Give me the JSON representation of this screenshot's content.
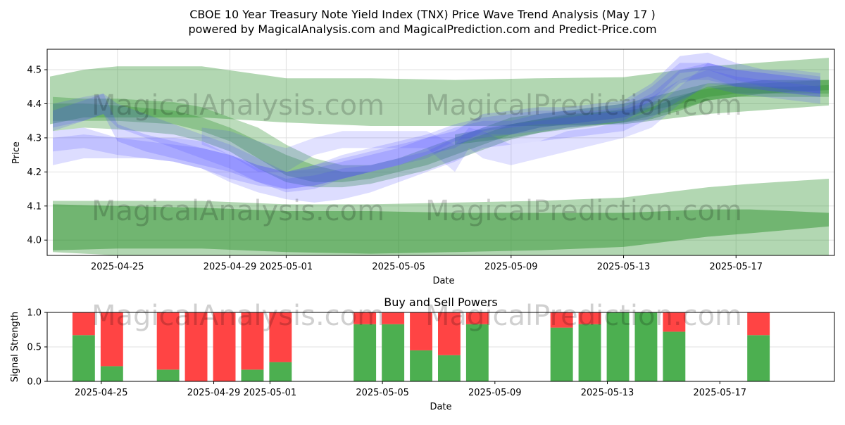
{
  "title_line1": "CBOE 10 Year Treasury Note Yield Index (TNX) Price Wave Trend Analysis (May 17 )",
  "title_line2": "powered by MagicalAnalysis.com and MagicalPrediction.com and Predict-Price.com",
  "watermarks": [
    "MagicalAnalysis.com",
    "MagicalPrediction.com"
  ],
  "colors": {
    "green": "#228b22",
    "blue": "#4444ff",
    "buy": "#4caf50",
    "sell": "#ff4444"
  },
  "chart_data": [
    {
      "type": "area",
      "title": "",
      "xlabel": "Date",
      "ylabel": "Price",
      "ylim": [
        3.955,
        4.56
      ],
      "xlim_days": [
        -2.5,
        25.5
      ],
      "x_origin": "2025-04-25",
      "grid": true,
      "yticks": [
        4.0,
        4.1,
        4.2,
        4.3,
        4.4,
        4.5
      ],
      "ytick_labels": [
        "4.0",
        "4.1",
        "4.2",
        "4.3",
        "4.4",
        "4.5"
      ],
      "xticks_days": [
        0,
        4,
        6,
        10,
        14,
        18,
        22
      ],
      "xtick_labels": [
        "2025-04-25",
        "2025-04-29",
        "2025-05-01",
        "2025-05-05",
        "2025-05-09",
        "2025-05-13",
        "2025-05-17"
      ],
      "green_bands": [
        {
          "name": "upper-wide",
          "x": [
            -2.4,
            -1.2,
            0,
            3,
            6,
            9,
            12,
            15,
            18,
            21,
            25.3
          ],
          "top": [
            4.48,
            4.5,
            4.51,
            4.51,
            4.475,
            4.475,
            4.47,
            4.475,
            4.478,
            4.51,
            4.535
          ],
          "bottom": [
            4.34,
            4.36,
            4.36,
            4.36,
            4.345,
            4.335,
            4.335,
            4.335,
            4.34,
            4.37,
            4.395
          ],
          "alpha": 0.35
        },
        {
          "name": "lower-wide",
          "x": [
            -2.3,
            0,
            3,
            6,
            9,
            12,
            15,
            18,
            21,
            22.5,
            25.3
          ],
          "top": [
            4.115,
            4.115,
            4.115,
            4.105,
            4.105,
            4.11,
            4.115,
            4.125,
            4.155,
            4.165,
            4.18
          ],
          "bottom": [
            3.965,
            3.955,
            3.955,
            3.955,
            3.955,
            3.955,
            3.955,
            3.955,
            3.955,
            3.955,
            3.955
          ],
          "alpha": 0.35
        },
        {
          "name": "lower-core",
          "x": [
            -2.3,
            0,
            3,
            6,
            9,
            12,
            15,
            18,
            21,
            22.5,
            25.3
          ],
          "top": [
            4.105,
            4.1,
            4.095,
            4.085,
            4.085,
            4.08,
            4.08,
            4.08,
            4.09,
            4.09,
            4.08
          ],
          "bottom": [
            3.97,
            3.975,
            3.975,
            3.965,
            3.96,
            3.965,
            3.97,
            3.98,
            4.01,
            4.02,
            4.04
          ],
          "alpha": 0.45
        },
        {
          "name": "mid-trend-1",
          "x": [
            -2.3,
            -1.2,
            0,
            2,
            3,
            4,
            5,
            6,
            7,
            8,
            9,
            10,
            11,
            12,
            13,
            14,
            15,
            16,
            17,
            18,
            19,
            20,
            21,
            22,
            23,
            24,
            25.3
          ],
          "top": [
            4.42,
            4.415,
            4.415,
            4.405,
            4.39,
            4.36,
            4.33,
            4.28,
            4.24,
            4.22,
            4.22,
            4.24,
            4.27,
            4.3,
            4.33,
            4.36,
            4.37,
            4.38,
            4.39,
            4.4,
            4.42,
            4.44,
            4.46,
            4.46,
            4.46,
            4.465,
            4.47
          ],
          "bottom": [
            4.35,
            4.35,
            4.35,
            4.34,
            4.32,
            4.29,
            4.24,
            4.19,
            4.17,
            4.17,
            4.18,
            4.2,
            4.22,
            4.25,
            4.28,
            4.31,
            4.33,
            4.34,
            4.35,
            4.36,
            4.38,
            4.4,
            4.42,
            4.43,
            4.43,
            4.43,
            4.43
          ],
          "alpha": 0.3
        },
        {
          "name": "mid-trend-2",
          "x": [
            -2.3,
            -1.2,
            0,
            2,
            3,
            4,
            5,
            6,
            7,
            8,
            9,
            10,
            11,
            12,
            13,
            14,
            15,
            16,
            17,
            18,
            19,
            20,
            21,
            22,
            23,
            24,
            25.3
          ],
          "top": [
            4.4,
            4.4,
            4.395,
            4.38,
            4.36,
            4.33,
            4.29,
            4.25,
            4.22,
            4.2,
            4.2,
            4.22,
            4.25,
            4.28,
            4.31,
            4.34,
            4.355,
            4.365,
            4.375,
            4.385,
            4.405,
            4.425,
            4.445,
            4.45,
            4.45,
            4.45,
            4.455
          ],
          "bottom": [
            4.32,
            4.33,
            4.325,
            4.31,
            4.29,
            4.26,
            4.21,
            4.17,
            4.155,
            4.155,
            4.165,
            4.185,
            4.205,
            4.235,
            4.265,
            4.295,
            4.315,
            4.325,
            4.335,
            4.345,
            4.365,
            4.385,
            4.41,
            4.42,
            4.42,
            4.42,
            4.42
          ],
          "alpha": 0.3
        },
        {
          "name": "end-trend",
          "x": [
            12,
            14,
            16,
            18,
            19,
            20,
            21,
            22,
            23,
            24,
            25.3
          ],
          "top": [
            4.31,
            4.34,
            4.37,
            4.38,
            4.39,
            4.42,
            4.45,
            4.46,
            4.47,
            4.47,
            4.47
          ],
          "bottom": [
            4.28,
            4.3,
            4.33,
            4.345,
            4.355,
            4.38,
            4.41,
            4.42,
            4.43,
            4.435,
            4.44
          ],
          "alpha": 0.35
        }
      ],
      "blue_bands": [
        {
          "name": "wave-1",
          "x": [
            -2.3,
            -1.2,
            0,
            1,
            2,
            3,
            4,
            5,
            6,
            7,
            8,
            9,
            10,
            11,
            12,
            13,
            14,
            15,
            16,
            17,
            18,
            19,
            20,
            21,
            22,
            23,
            24,
            25
          ],
          "top": [
            4.32,
            4.33,
            4.3,
            4.29,
            4.28,
            4.27,
            4.25,
            4.22,
            4.2,
            4.22,
            4.24,
            4.26,
            4.28,
            4.3,
            4.33,
            4.35,
            4.35,
            4.37,
            4.38,
            4.38,
            4.39,
            4.43,
            4.5,
            4.52,
            4.5,
            4.49,
            4.48,
            4.47
          ],
          "bottom": [
            4.26,
            4.27,
            4.25,
            4.24,
            4.23,
            4.21,
            4.18,
            4.16,
            4.15,
            4.16,
            4.18,
            4.2,
            4.22,
            4.25,
            4.29,
            4.31,
            4.31,
            4.33,
            4.34,
            4.34,
            4.35,
            4.39,
            4.46,
            4.48,
            4.45,
            4.44,
            4.43,
            4.42
          ],
          "alpha": 0.18
        },
        {
          "name": "wave-2",
          "x": [
            -2.3,
            -1.2,
            -0.5,
            0,
            1,
            2,
            3,
            4,
            5,
            6,
            7,
            8,
            9,
            10,
            11,
            12,
            13,
            14,
            15,
            16,
            17,
            18,
            19,
            20,
            21,
            22,
            23,
            24,
            25
          ],
          "top": [
            4.4,
            4.42,
            4.43,
            4.4,
            4.37,
            4.34,
            4.31,
            4.28,
            4.24,
            4.2,
            4.22,
            4.25,
            4.27,
            4.29,
            4.31,
            4.34,
            4.36,
            4.37,
            4.38,
            4.38,
            4.39,
            4.4,
            4.45,
            4.52,
            4.52,
            4.5,
            4.5,
            4.5,
            4.49
          ],
          "bottom": [
            4.33,
            4.35,
            4.37,
            4.33,
            4.3,
            4.27,
            4.24,
            4.21,
            4.17,
            4.14,
            4.15,
            4.18,
            4.2,
            4.22,
            4.24,
            4.28,
            4.3,
            4.31,
            4.32,
            4.33,
            4.34,
            4.35,
            4.4,
            4.47,
            4.47,
            4.45,
            4.45,
            4.44,
            4.43
          ],
          "alpha": 0.18
        },
        {
          "name": "wave-3",
          "x": [
            -2.3,
            -1.2,
            0,
            1,
            2,
            3,
            4,
            5,
            6,
            7,
            8,
            9,
            10,
            11,
            12,
            13,
            14,
            15,
            16,
            17,
            18,
            19,
            20,
            21,
            22,
            23,
            24,
            25
          ],
          "top": [
            4.3,
            4.31,
            4.3,
            4.3,
            4.3,
            4.29,
            4.25,
            4.21,
            4.18,
            4.19,
            4.21,
            4.22,
            4.24,
            4.26,
            4.3,
            4.33,
            4.34,
            4.35,
            4.36,
            4.37,
            4.38,
            4.42,
            4.47,
            4.5,
            4.48,
            4.47,
            4.46,
            4.45
          ],
          "bottom": [
            4.22,
            4.24,
            4.24,
            4.24,
            4.23,
            4.21,
            4.17,
            4.14,
            4.12,
            4.11,
            4.12,
            4.14,
            4.17,
            4.2,
            4.23,
            4.27,
            4.28,
            4.29,
            4.3,
            4.31,
            4.32,
            4.36,
            4.41,
            4.45,
            4.43,
            4.42,
            4.41,
            4.4
          ],
          "alpha": 0.18
        },
        {
          "name": "wave-4",
          "x": [
            3,
            4,
            5,
            6,
            7,
            8,
            9,
            10,
            11,
            12,
            12.5,
            13,
            14,
            15,
            16,
            17,
            18,
            19,
            20,
            21,
            22,
            23,
            24,
            25
          ],
          "top": [
            4.33,
            4.32,
            4.29,
            4.27,
            4.3,
            4.32,
            4.32,
            4.32,
            4.32,
            4.28,
            4.33,
            4.32,
            4.28,
            4.29,
            4.32,
            4.33,
            4.35,
            4.38,
            4.45,
            4.52,
            4.5,
            4.49,
            4.48,
            4.47
          ],
          "bottom": [
            4.28,
            4.25,
            4.2,
            4.2,
            4.25,
            4.27,
            4.27,
            4.27,
            4.27,
            4.2,
            4.27,
            4.24,
            4.22,
            4.24,
            4.26,
            4.28,
            4.3,
            4.33,
            4.4,
            4.46,
            4.45,
            4.44,
            4.43,
            4.42
          ],
          "alpha": 0.16
        },
        {
          "name": "wave-5",
          "x": [
            -2.3,
            -1.2,
            -0.5,
            0,
            1,
            2,
            3,
            4,
            5,
            6,
            7,
            8,
            9,
            10,
            11,
            12,
            13,
            14,
            15,
            16,
            17,
            18,
            19,
            20,
            21,
            22,
            23,
            24,
            25
          ],
          "top": [
            4.38,
            4.41,
            4.43,
            4.34,
            4.31,
            4.29,
            4.27,
            4.25,
            4.22,
            4.2,
            4.21,
            4.23,
            4.25,
            4.27,
            4.3,
            4.32,
            4.37,
            4.38,
            4.39,
            4.39,
            4.4,
            4.41,
            4.46,
            4.54,
            4.55,
            4.52,
            4.5,
            4.49,
            4.48
          ],
          "bottom": [
            4.32,
            4.35,
            4.37,
            4.29,
            4.26,
            4.24,
            4.22,
            4.2,
            4.17,
            4.15,
            4.16,
            4.18,
            4.2,
            4.22,
            4.25,
            4.27,
            4.32,
            4.33,
            4.34,
            4.34,
            4.35,
            4.36,
            4.41,
            4.49,
            4.5,
            4.47,
            4.45,
            4.44,
            4.43
          ],
          "alpha": 0.2
        }
      ]
    },
    {
      "type": "bar",
      "title": "Buy and Sell Powers",
      "xlabel": "Date",
      "ylabel": "Signal Strength",
      "ylim": [
        0,
        1
      ],
      "yticks": [
        0.0,
        0.5,
        1.0
      ],
      "ytick_labels": [
        "0.0",
        "0.5",
        "1.0"
      ],
      "xticks_days": [
        0,
        4,
        6,
        10,
        14,
        18,
        22
      ],
      "xtick_labels": [
        "2025-04-25",
        "2025-04-29",
        "2025-05-01",
        "2025-05-05",
        "2025-05-09",
        "2025-05-13",
        "2025-05-17"
      ],
      "xlim_days": [
        -2.5,
        25.5
      ],
      "series": [
        {
          "name": "Buy",
          "color": "#4caf50"
        },
        {
          "name": "Sell",
          "color": "#ff4444"
        }
      ],
      "bars": [
        {
          "day": -1.2,
          "buy": 0.67
        },
        {
          "day": -0.2,
          "buy": 0.22
        },
        {
          "day": 1.8,
          "buy": 0.17
        },
        {
          "day": 2.8,
          "buy": 0.0
        },
        {
          "day": 3.8,
          "buy": 0.0
        },
        {
          "day": 4.8,
          "buy": 0.17
        },
        {
          "day": 5.8,
          "buy": 0.28
        },
        {
          "day": 8.8,
          "buy": 0.83
        },
        {
          "day": 9.8,
          "buy": 0.83
        },
        {
          "day": 10.8,
          "buy": 0.45
        },
        {
          "day": 11.8,
          "buy": 0.38
        },
        {
          "day": 12.8,
          "buy": 0.83
        },
        {
          "day": 15.8,
          "buy": 0.78
        },
        {
          "day": 16.8,
          "buy": 0.83
        },
        {
          "day": 17.8,
          "buy": 1.0
        },
        {
          "day": 18.8,
          "buy": 1.0
        },
        {
          "day": 19.8,
          "buy": 0.72
        },
        {
          "day": 22.8,
          "buy": 0.67
        }
      ]
    }
  ]
}
